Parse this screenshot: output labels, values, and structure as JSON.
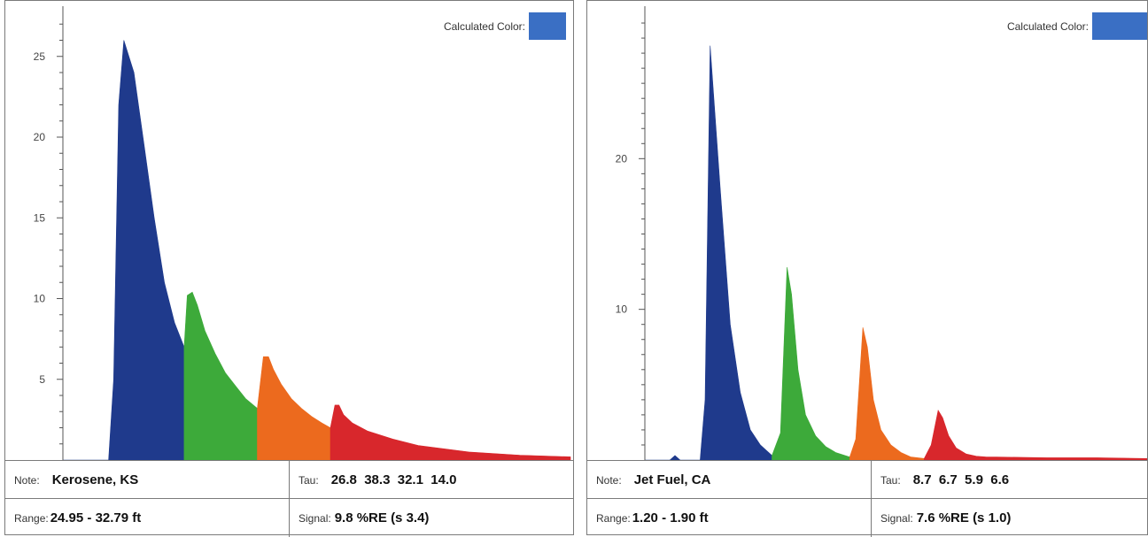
{
  "panels": [
    {
      "calculated_color_label": "Calculated Color:",
      "calculated_color": "#3a6fc4",
      "note_label": "Note:",
      "note": "Kerosene, KS",
      "tau_label": "Tau:",
      "tau": "26.8  38.3  32.1  14.0",
      "range_label": "Range:",
      "range": "24.95 - 32.79 ft",
      "signal_label": "Signal:",
      "signal": "9.8 %RE (s 3.4)"
    },
    {
      "calculated_color_label": "Calculated Color:",
      "calculated_color": "#3a6fc4",
      "note_label": "Note:",
      "note": "Jet Fuel, CA",
      "tau_label": "Tau:",
      "tau": "8.7  6.7  5.9  6.6",
      "range_label": "Range:",
      "range": "1.20 - 1.90 ft",
      "signal_label": "Signal:",
      "signal": "7.6 %RE (s 1.0)"
    }
  ],
  "channel_colors": [
    "#1f3a8c",
    "#3daa3a",
    "#ec6a1e",
    "#d8272c"
  ],
  "chart_data": [
    {
      "type": "area",
      "title": "",
      "xlabel": "",
      "ylabel": "",
      "ylim": [
        0,
        28
      ],
      "yticks": [
        5,
        10,
        15,
        20,
        25
      ],
      "xlim": [
        0,
        100
      ],
      "grid": false,
      "series": [
        {
          "x": [
            0,
            4,
            9,
            10,
            11,
            12,
            14,
            16,
            18,
            20,
            22,
            23.9
          ],
          "values": [
            0,
            0,
            0,
            5,
            22,
            26,
            24,
            19.5,
            15,
            11,
            8.5,
            7
          ]
        },
        {
          "x": [
            23.9,
            24.5,
            25.5,
            26.5,
            28,
            30,
            32,
            34,
            36,
            38.3
          ],
          "values": [
            7,
            10.2,
            10.4,
            9.6,
            8,
            6.6,
            5.4,
            4.6,
            3.8,
            3.2
          ]
        },
        {
          "x": [
            38.3,
            39.5,
            40.5,
            41.5,
            43,
            45,
            47,
            49,
            51,
            52.7
          ],
          "values": [
            3.2,
            6.4,
            6.4,
            5.6,
            4.7,
            3.8,
            3.2,
            2.7,
            2.3,
            2.0
          ]
        },
        {
          "x": [
            52.7,
            53.6,
            54.4,
            55.3,
            57,
            60,
            65,
            70,
            80,
            90,
            100
          ],
          "values": [
            2.0,
            3.4,
            3.4,
            2.8,
            2.3,
            1.8,
            1.3,
            0.9,
            0.5,
            0.3,
            0.2
          ]
        }
      ]
    },
    {
      "type": "area",
      "title": "",
      "xlabel": "",
      "ylabel": "",
      "ylim": [
        0,
        30
      ],
      "yticks": [
        10,
        20
      ],
      "xlim": [
        0,
        100
      ],
      "grid": false,
      "series": [
        {
          "x": [
            0,
            5,
            6,
            7,
            9,
            11,
            12,
            13,
            15,
            17,
            19,
            21,
            23,
            25.3
          ],
          "values": [
            0,
            0,
            0.3,
            0,
            0,
            0,
            4,
            27.5,
            18,
            9,
            4.5,
            2,
            1,
            0.3
          ]
        },
        {
          "x": [
            25.3,
            27,
            28.3,
            29.2,
            30.5,
            32,
            34,
            36,
            38,
            40.8
          ],
          "values": [
            0.3,
            1.8,
            12.8,
            11,
            6,
            3,
            1.6,
            0.9,
            0.5,
            0.2
          ]
        },
        {
          "x": [
            40.8,
            42,
            43.4,
            44.3,
            45.5,
            47,
            49,
            51,
            53,
            55.6
          ],
          "values": [
            0.2,
            1.4,
            8.8,
            7.5,
            4,
            2,
            1,
            0.5,
            0.2,
            0.1
          ]
        },
        {
          "x": [
            55.6,
            57,
            58.4,
            59.3,
            60.5,
            62,
            64,
            66,
            68,
            70,
            80,
            90,
            100
          ],
          "values": [
            0.1,
            1,
            3.3,
            2.8,
            1.6,
            0.8,
            0.4,
            0.25,
            0.2,
            0.2,
            0.15,
            0.15,
            0.1
          ]
        }
      ]
    }
  ]
}
